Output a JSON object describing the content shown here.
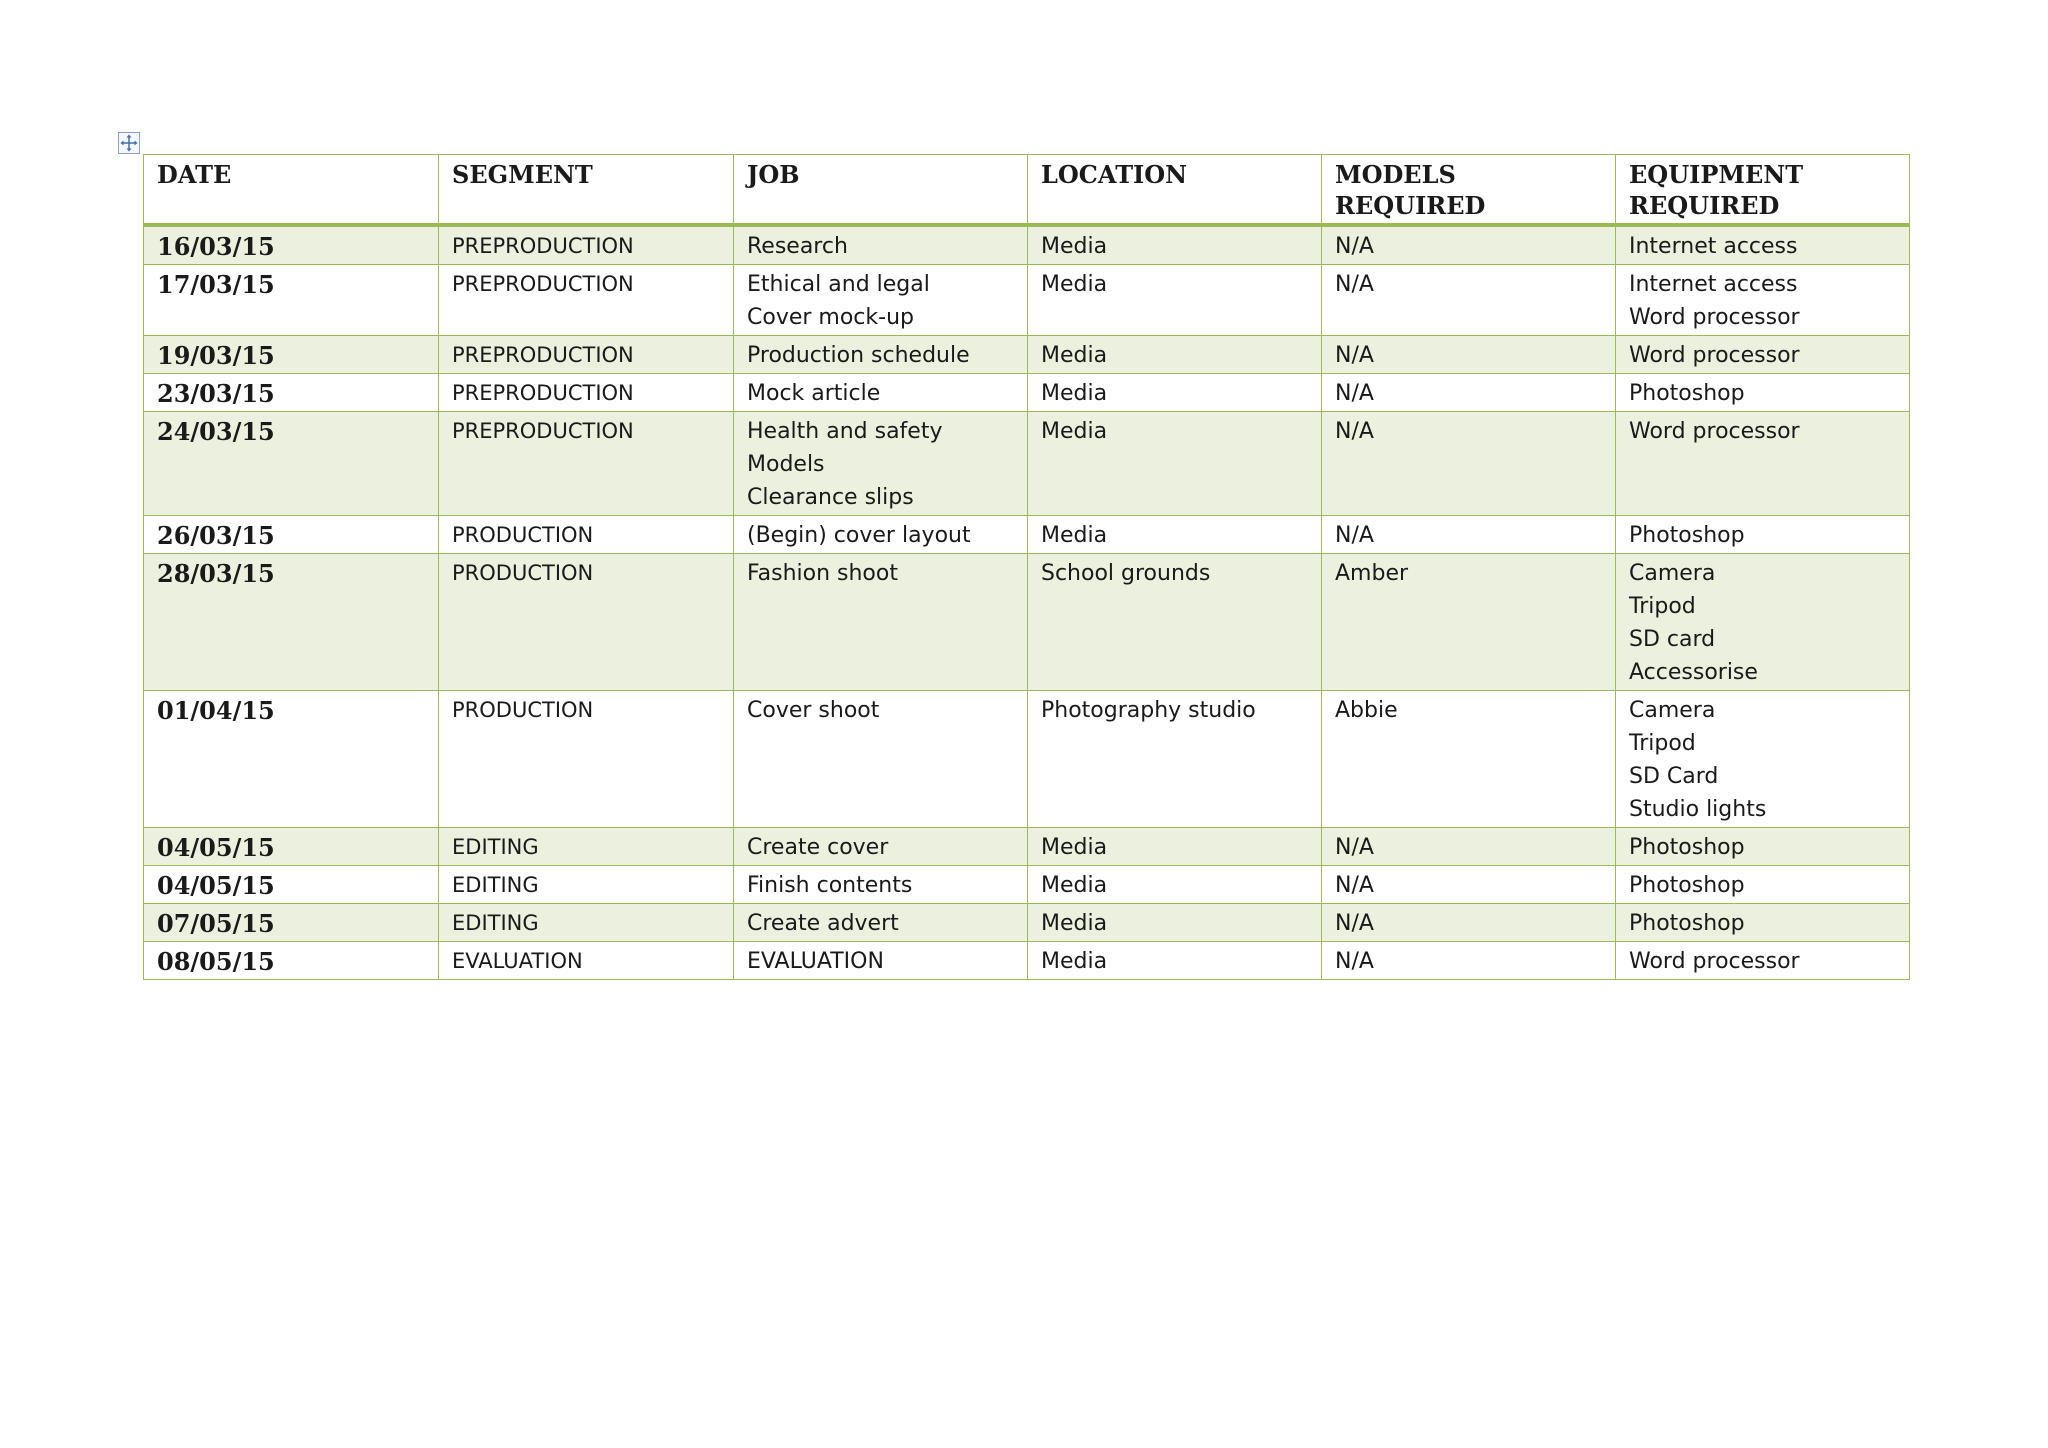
{
  "table": {
    "headers": {
      "date": "DATE",
      "segment": "SEGMENT",
      "job": "JOB",
      "location": "LOCATION",
      "models": "MODELS REQUIRED",
      "equipment_line1": "EQUIPMENT",
      "equipment_line2": "REQUIRED"
    },
    "rows": [
      {
        "date": "16/03/15",
        "segment": "PREPRODUCTION",
        "job": [
          "Research"
        ],
        "location": "Media",
        "models": "N/A",
        "equipment": [
          "Internet access"
        ]
      },
      {
        "date": "17/03/15",
        "segment": "PREPRODUCTION",
        "job": [
          "Ethical and legal",
          "Cover mock-up"
        ],
        "location": "Media",
        "models": "N/A",
        "equipment": [
          "Internet access",
          "Word processor"
        ]
      },
      {
        "date": "19/03/15",
        "segment": "PREPRODUCTION",
        "job": [
          "Production schedule"
        ],
        "location": "Media",
        "models": "N/A",
        "equipment": [
          "Word processor"
        ]
      },
      {
        "date": "23/03/15",
        "segment": "PREPRODUCTION",
        "job": [
          "Mock article"
        ],
        "location": "Media",
        "models": "N/A",
        "equipment": [
          "Photoshop"
        ]
      },
      {
        "date": "24/03/15",
        "segment": "PREPRODUCTION",
        "job": [
          "Health and safety",
          "Models",
          "Clearance slips"
        ],
        "location": "Media",
        "models": "N/A",
        "equipment": [
          "Word processor"
        ]
      },
      {
        "date": "26/03/15",
        "segment": "PRODUCTION",
        "job": [
          "(Begin) cover layout"
        ],
        "location": "Media",
        "models": "N/A",
        "equipment": [
          "Photoshop"
        ]
      },
      {
        "date": "28/03/15",
        "segment": "PRODUCTION",
        "job": [
          "Fashion shoot"
        ],
        "location": "School grounds",
        "models": "Amber",
        "equipment": [
          "Camera",
          "Tripod",
          "SD card",
          "Accessorise"
        ]
      },
      {
        "date": "01/04/15",
        "segment": "PRODUCTION",
        "job": [
          "Cover shoot"
        ],
        "location": "Photography studio",
        "models": "Abbie",
        "equipment": [
          "Camera",
          "Tripod",
          "SD Card",
          "Studio lights"
        ]
      },
      {
        "date": "04/05/15",
        "segment": "EDITING",
        "job": [
          "Create cover"
        ],
        "location": "Media",
        "models": "N/A",
        "equipment": [
          "Photoshop"
        ]
      },
      {
        "date": "04/05/15",
        "segment": "EDITING",
        "job": [
          "Finish contents"
        ],
        "location": "Media",
        "models": "N/A",
        "equipment": [
          "Photoshop"
        ]
      },
      {
        "date": "07/05/15",
        "segment": "EDITING",
        "job": [
          "Create advert"
        ],
        "location": "Media",
        "models": "N/A",
        "equipment": [
          "Photoshop"
        ]
      },
      {
        "date": "08/05/15",
        "segment": "EVALUATION",
        "job": [
          "EVALUATION"
        ],
        "location": "Media",
        "models": "N/A",
        "equipment": [
          "Word processor"
        ]
      }
    ]
  },
  "colors": {
    "border": "#9bbb59",
    "band": "#ebf1de",
    "text": "#1a1a1a"
  },
  "icons": {
    "table_handle": "move-cross-icon"
  }
}
